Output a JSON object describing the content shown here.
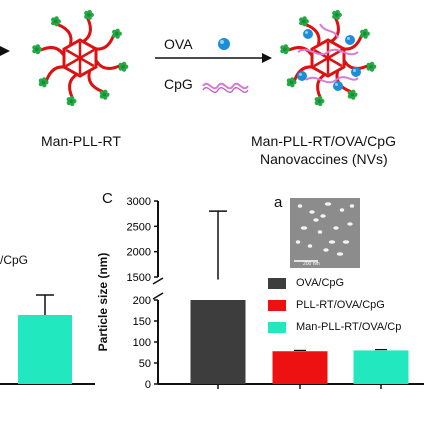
{
  "scheme": {
    "reagent_1": "OVA",
    "reagent_2": "CpG",
    "left_caption": "Man-PLL-RT",
    "right_caption_line1": "Man-PLL-RT/OVA/CpG",
    "right_caption_line2": "Nanovaccines (NVs)"
  },
  "panel_b_partial": {
    "fragment_label": "/CpG"
  },
  "panel_c": {
    "letter": "C",
    "inset_letter": "a",
    "inset_scalebar": "200 nm"
  },
  "chart_data": {
    "type": "bar",
    "ylabel": "Particle size (nm)",
    "broken_axis": true,
    "ylim_lower": [
      0,
      200
    ],
    "ylim_upper": [
      1500,
      3000
    ],
    "yticks_lower": [
      "0",
      "50",
      "100",
      "150",
      "200"
    ],
    "yticks_upper": [
      "1500",
      "2000",
      "2500",
      "3000"
    ],
    "series": [
      {
        "name": "OVA/CpG",
        "value": 1450,
        "error_plus": 1350,
        "color": "#3d3d3d"
      },
      {
        "name": "PLL-RT/OVA/CpG",
        "value": 78,
        "error_plus": 2,
        "color": "#ee1111"
      },
      {
        "name": "Man-PLL-RT/OVA/CpG",
        "value": 80,
        "error_plus": 2,
        "color": "#22e8c0"
      }
    ],
    "legend_labels": [
      "OVA/CpG",
      "PLL-RT/OVA/CpG",
      "Man-PLL-RT/OVA/Cp"
    ]
  }
}
